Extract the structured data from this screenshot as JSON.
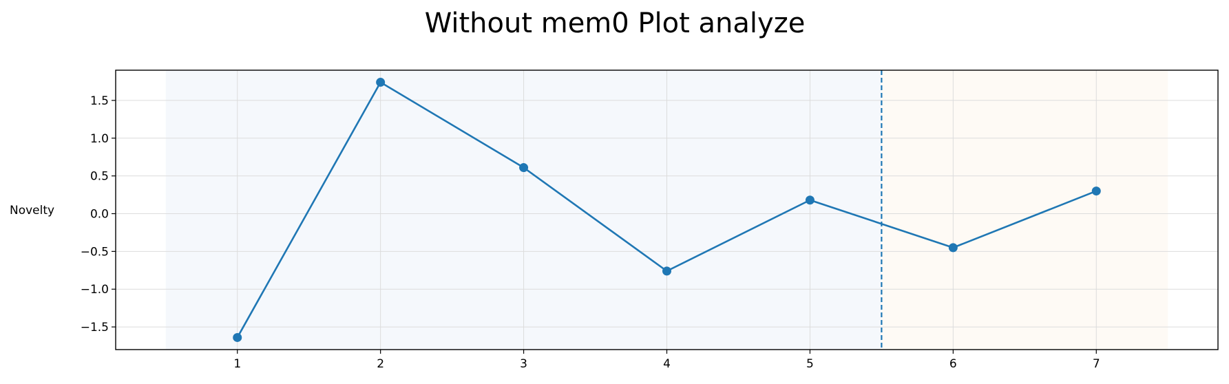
{
  "chart_data": {
    "type": "line",
    "title": "Without mem0 Plot analyze",
    "xlabel": "",
    "ylabel": "Novelty",
    "x": [
      1,
      2,
      3,
      4,
      5,
      6,
      7
    ],
    "series": [
      {
        "values": [
          -1.64,
          1.74,
          0.61,
          -0.76,
          0.18,
          -0.45,
          0.3
        ]
      }
    ],
    "xlim": [
      0.15,
      7.85
    ],
    "ylim": [
      -1.8,
      1.9
    ],
    "xticks": [
      1,
      2,
      3,
      4,
      5,
      6,
      7
    ],
    "xtick_labels": [
      "1",
      "2",
      "3",
      "4",
      "5",
      "6",
      "7"
    ],
    "yticks": [
      1.5,
      1.0,
      0.5,
      0.0,
      -0.5,
      -1.0,
      -1.5
    ],
    "ytick_labels": [
      "1.5",
      "1.0",
      "0.5",
      "0.0",
      "−0.5",
      "−1.0",
      "−1.5"
    ],
    "grid": true,
    "shaded_regions": [
      {
        "x_start": 0.5,
        "x_end": 5.5,
        "color": "#f5f8fc"
      },
      {
        "x_start": 5.5,
        "x_end": 7.5,
        "color": "#fefaf5"
      }
    ],
    "vline": {
      "x": 5.5,
      "style": "dashed"
    },
    "colors": {
      "line": "#1f77b4",
      "grid": "#dcdcdc",
      "axis": "#000000"
    }
  }
}
